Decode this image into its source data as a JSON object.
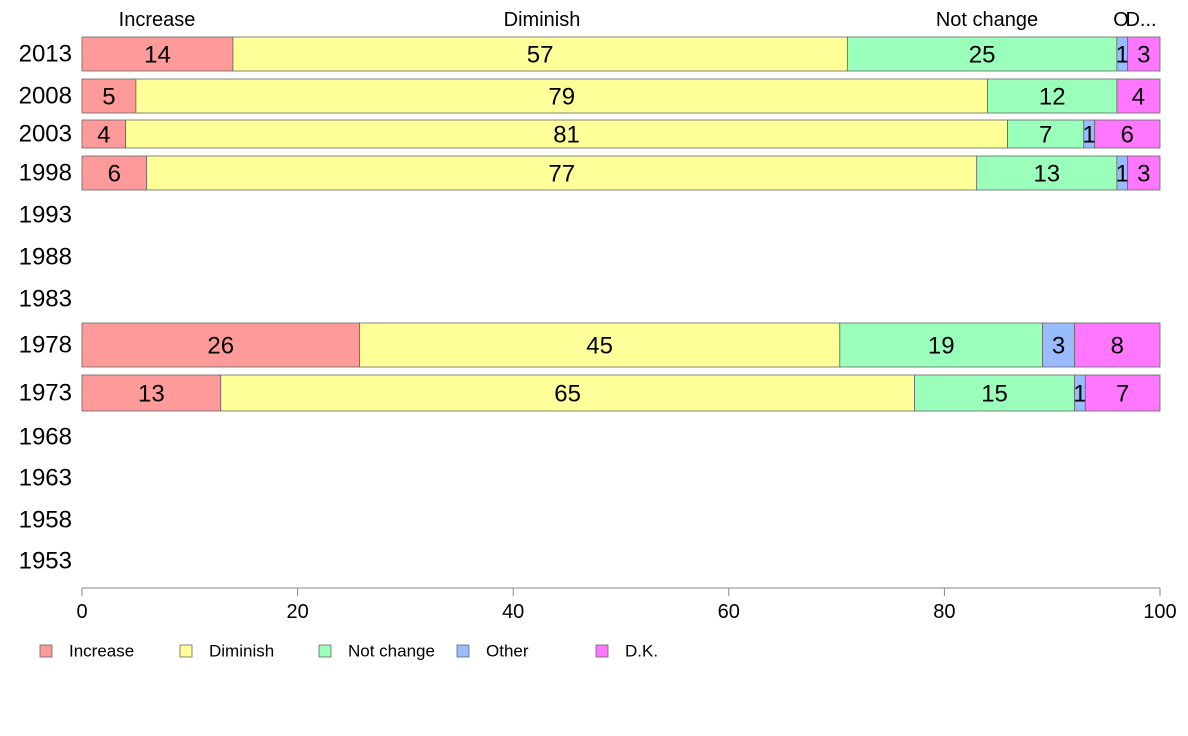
{
  "chart_data": {
    "type": "bar",
    "orientation": "horizontal",
    "stacked": true,
    "categories": [
      "2013",
      "2008",
      "2003",
      "1998",
      "1993",
      "1988",
      "1983",
      "1978",
      "1973",
      "1968",
      "1963",
      "1958",
      "1953"
    ],
    "series": [
      {
        "name": "Increase",
        "color": "#ff9a9a",
        "values": [
          14,
          5,
          4,
          6,
          null,
          null,
          null,
          26,
          13,
          null,
          null,
          null,
          null
        ]
      },
      {
        "name": "Diminish",
        "color": "#ffff99",
        "values": [
          57,
          79,
          81,
          77,
          null,
          null,
          null,
          45,
          65,
          null,
          null,
          null,
          null
        ]
      },
      {
        "name": "Not change",
        "color": "#99ffbb",
        "values": [
          25,
          12,
          7,
          13,
          null,
          null,
          null,
          19,
          15,
          null,
          null,
          null,
          null
        ]
      },
      {
        "name": "Other",
        "color": "#99bbff",
        "values": [
          1,
          0,
          1,
          1,
          null,
          null,
          null,
          3,
          1,
          null,
          null,
          null,
          null
        ]
      },
      {
        "name": "D.K.",
        "color": "#ff77ff",
        "values": [
          3,
          4,
          6,
          3,
          null,
          null,
          null,
          8,
          7,
          null,
          null,
          null,
          null
        ]
      }
    ],
    "header_labels": [
      "Increase",
      "Diminish",
      "Not change",
      "O",
      "D..."
    ],
    "xlim": [
      0,
      100
    ],
    "xticks": [
      "0",
      "20",
      "40",
      "60",
      "80",
      "100"
    ],
    "grid": false,
    "legend": [
      "Increase",
      "Diminish",
      "Not change",
      "Other",
      "D.K."
    ],
    "legend_position": "bottom-left"
  }
}
